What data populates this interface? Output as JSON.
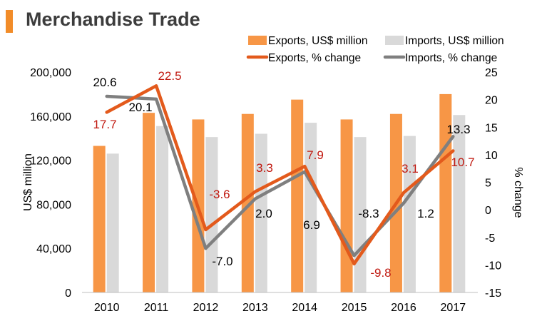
{
  "header": {
    "title": "Merchandise Trade"
  },
  "colors": {
    "exports_bar": "#f79646",
    "imports_bar": "#d9d9d9",
    "exports_line": "#e35a1c",
    "imports_line": "#7f7f7f",
    "accent": "#f28c28",
    "label_red": "#c0180f"
  },
  "chart_data": {
    "type": "bar",
    "categories": [
      "2010",
      "2011",
      "2012",
      "2013",
      "2014",
      "2015",
      "2016",
      "2017"
    ],
    "series": [
      {
        "name": "Exports, US$ million",
        "kind": "bar",
        "axis": "left",
        "values": [
          133000,
          163000,
          157000,
          162000,
          175000,
          157000,
          162000,
          180000
        ]
      },
      {
        "name": "Imports, US$ million",
        "kind": "bar",
        "axis": "left",
        "values": [
          126000,
          151000,
          141000,
          144000,
          154000,
          141000,
          142000,
          161000
        ]
      },
      {
        "name": "Exports, % change",
        "kind": "line",
        "axis": "right",
        "values": [
          17.7,
          22.5,
          -3.6,
          3.3,
          7.9,
          -9.8,
          3.1,
          10.7
        ]
      },
      {
        "name": "Imports, % change",
        "kind": "line",
        "axis": "right",
        "values": [
          20.6,
          20.1,
          -7.0,
          2.0,
          6.9,
          -8.3,
          1.2,
          13.3
        ]
      }
    ],
    "data_labels": {
      "exports_change": [
        "17.7",
        "22.5",
        "-3.6",
        "3.3",
        "7.9",
        "-9.8",
        "3.1",
        "10.7"
      ],
      "imports_change": [
        "20.6",
        "20.1",
        "-7.0",
        "2.0",
        "6.9",
        "-8.3",
        "1.2",
        "13.3"
      ]
    },
    "ylabel": "US$ million",
    "y2label": "% change",
    "ylim": [
      0,
      200000
    ],
    "y2lim": [
      -15,
      25
    ],
    "yticks": [
      "0",
      "40,000",
      "80,000",
      "120,000",
      "160,000",
      "200,000"
    ],
    "y2ticks": [
      "-15",
      "-10",
      "-5",
      "0",
      "5",
      "10",
      "15",
      "20",
      "25"
    ],
    "grid": false,
    "legend_position": "top"
  }
}
